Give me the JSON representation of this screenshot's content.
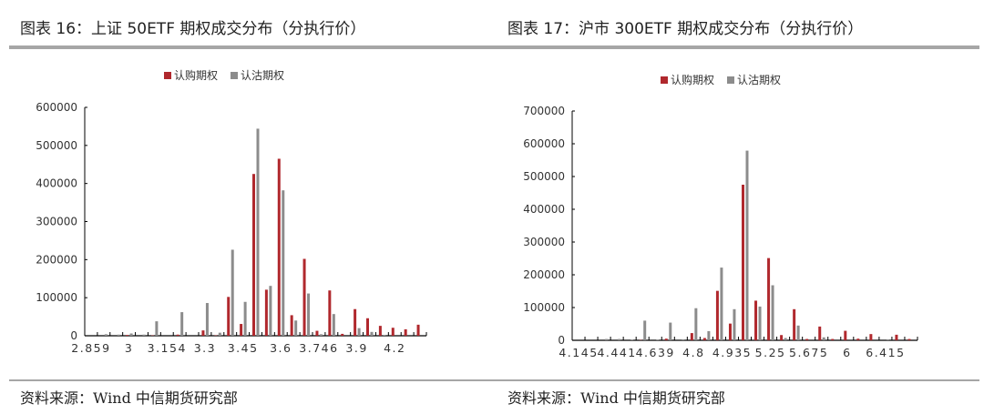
{
  "colors": {
    "call": "#b0282d",
    "put": "#8c8c8c"
  },
  "panels": [
    {
      "title": "图表 16：上证 50ETF 期权成交分布（分执行价）",
      "source": "资料来源：Wind 中信期货研究部"
    },
    {
      "title": "图表 17：沪市 300ETF 期权成交分布（分执行价）",
      "source": "资料来源：Wind 中信期货研究部"
    }
  ],
  "chart_data": [
    {
      "type": "bar",
      "title": "",
      "legend": [
        "认购期权",
        "认沽期权"
      ],
      "legend_position": "top",
      "grid": false,
      "ylim": [
        0,
        600000
      ],
      "yticks": [
        0,
        100000,
        200000,
        300000,
        400000,
        500000,
        600000
      ],
      "categories": [
        "2.859",
        "",
        "",
        "3",
        "",
        "",
        "3.154",
        "",
        "",
        "3.3",
        "",
        "",
        "3.45",
        "",
        "",
        "3.6",
        "",
        "",
        "3.746",
        "",
        "",
        "3.9",
        "",
        "",
        "4.2",
        "",
        ""
      ],
      "series": [
        {
          "name": "认购期权",
          "values": [
            0,
            0,
            0,
            2000,
            0,
            1000,
            0,
            3000,
            0,
            14000,
            1000,
            102000,
            31000,
            425000,
            121000,
            465000,
            54000,
            202000,
            13000,
            119000,
            5000,
            70000,
            46000,
            26000,
            21000,
            17000,
            29000
          ]
        },
        {
          "name": "认沽期权",
          "values": [
            0,
            4000,
            3000,
            6000,
            3000,
            38000,
            0,
            62000,
            0,
            86000,
            8000,
            226000,
            89000,
            544000,
            131000,
            382000,
            40000,
            111000,
            4000,
            57000,
            0,
            20000,
            10000,
            2000,
            0,
            0,
            0
          ]
        }
      ]
    },
    {
      "type": "bar",
      "title": "",
      "legend": [
        "认购期权",
        "认沽期权"
      ],
      "legend_position": "top",
      "grid": false,
      "ylim": [
        0,
        700000
      ],
      "yticks": [
        0,
        100000,
        200000,
        300000,
        400000,
        500000,
        600000,
        700000
      ],
      "categories": [
        "4.145",
        "",
        "",
        "4.441",
        "",
        "",
        "4.639",
        "",
        "",
        "4.8",
        "",
        "",
        "4.935",
        "",
        "",
        "5.25",
        "",
        "",
        "5.675",
        "",
        "",
        "6",
        "",
        "",
        "6.415",
        "",
        ""
      ],
      "series": [
        {
          "name": "认购期权",
          "values": [
            0,
            0,
            0,
            0,
            0,
            1000,
            0,
            5000,
            0,
            22000,
            7000,
            151000,
            51000,
            475000,
            121000,
            251000,
            16000,
            95000,
            4000,
            42000,
            4000,
            29000,
            5000,
            19000,
            0,
            17000,
            4000
          ]
        },
        {
          "name": "认沽期权",
          "values": [
            0,
            0,
            4000,
            4000,
            2000,
            60000,
            2000,
            54000,
            3000,
            98000,
            28000,
            222000,
            95000,
            579000,
            103000,
            168000,
            7000,
            45000,
            0,
            9000,
            0,
            0,
            0,
            0,
            3000,
            0,
            0
          ]
        }
      ]
    }
  ]
}
